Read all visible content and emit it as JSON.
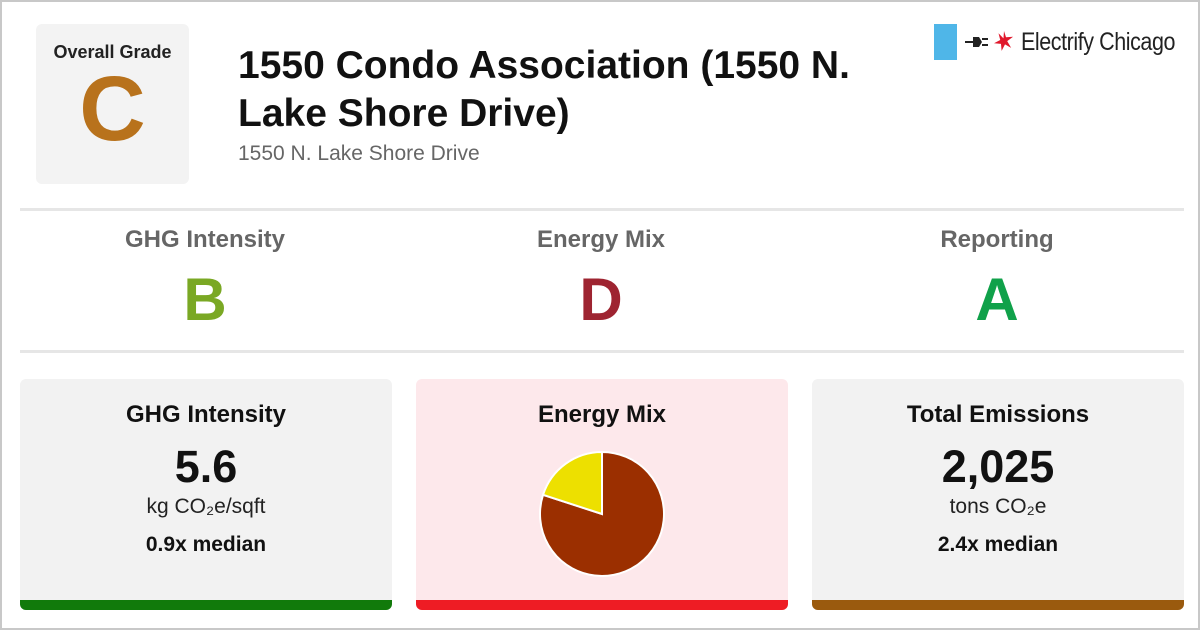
{
  "overall": {
    "label": "Overall Grade",
    "grade": "C",
    "color": "#b8721c"
  },
  "building": {
    "name": "1550 Condo Association (1550 N. Lake Shore Drive)",
    "address": "1550 N. Lake Shore Drive"
  },
  "brand": {
    "name": "Electrify Chicago",
    "flag_color": "#4fb6e8",
    "star_color": "#e0192c"
  },
  "grades": [
    {
      "title": "GHG Intensity",
      "grade": "B",
      "color": "#7aa824"
    },
    {
      "title": "Energy Mix",
      "grade": "D",
      "color": "#9e2431"
    },
    {
      "title": "Reporting",
      "grade": "A",
      "color": "#10a14a"
    }
  ],
  "cards": {
    "ghg": {
      "title": "GHG Intensity",
      "value": "5.6",
      "unit": "kg CO₂e/sqft",
      "median": "0.9x median",
      "bg": "#f2f2f2",
      "bar_color": "#117a0b"
    },
    "mix": {
      "title": "Energy Mix",
      "bg": "#fde8eb",
      "bar_color": "#ee1c24"
    },
    "emissions": {
      "title": "Total Emissions",
      "value": "2,025",
      "unit": "tons CO₂e",
      "median": "2.4x median",
      "bg": "#f2f2f2",
      "bar_color": "#9a5a0e"
    }
  },
  "chart_data": {
    "type": "pie",
    "slices": [
      {
        "fraction": 0.8,
        "color": "#9b2f00"
      },
      {
        "fraction": 0.2,
        "color": "#ede000"
      }
    ]
  }
}
